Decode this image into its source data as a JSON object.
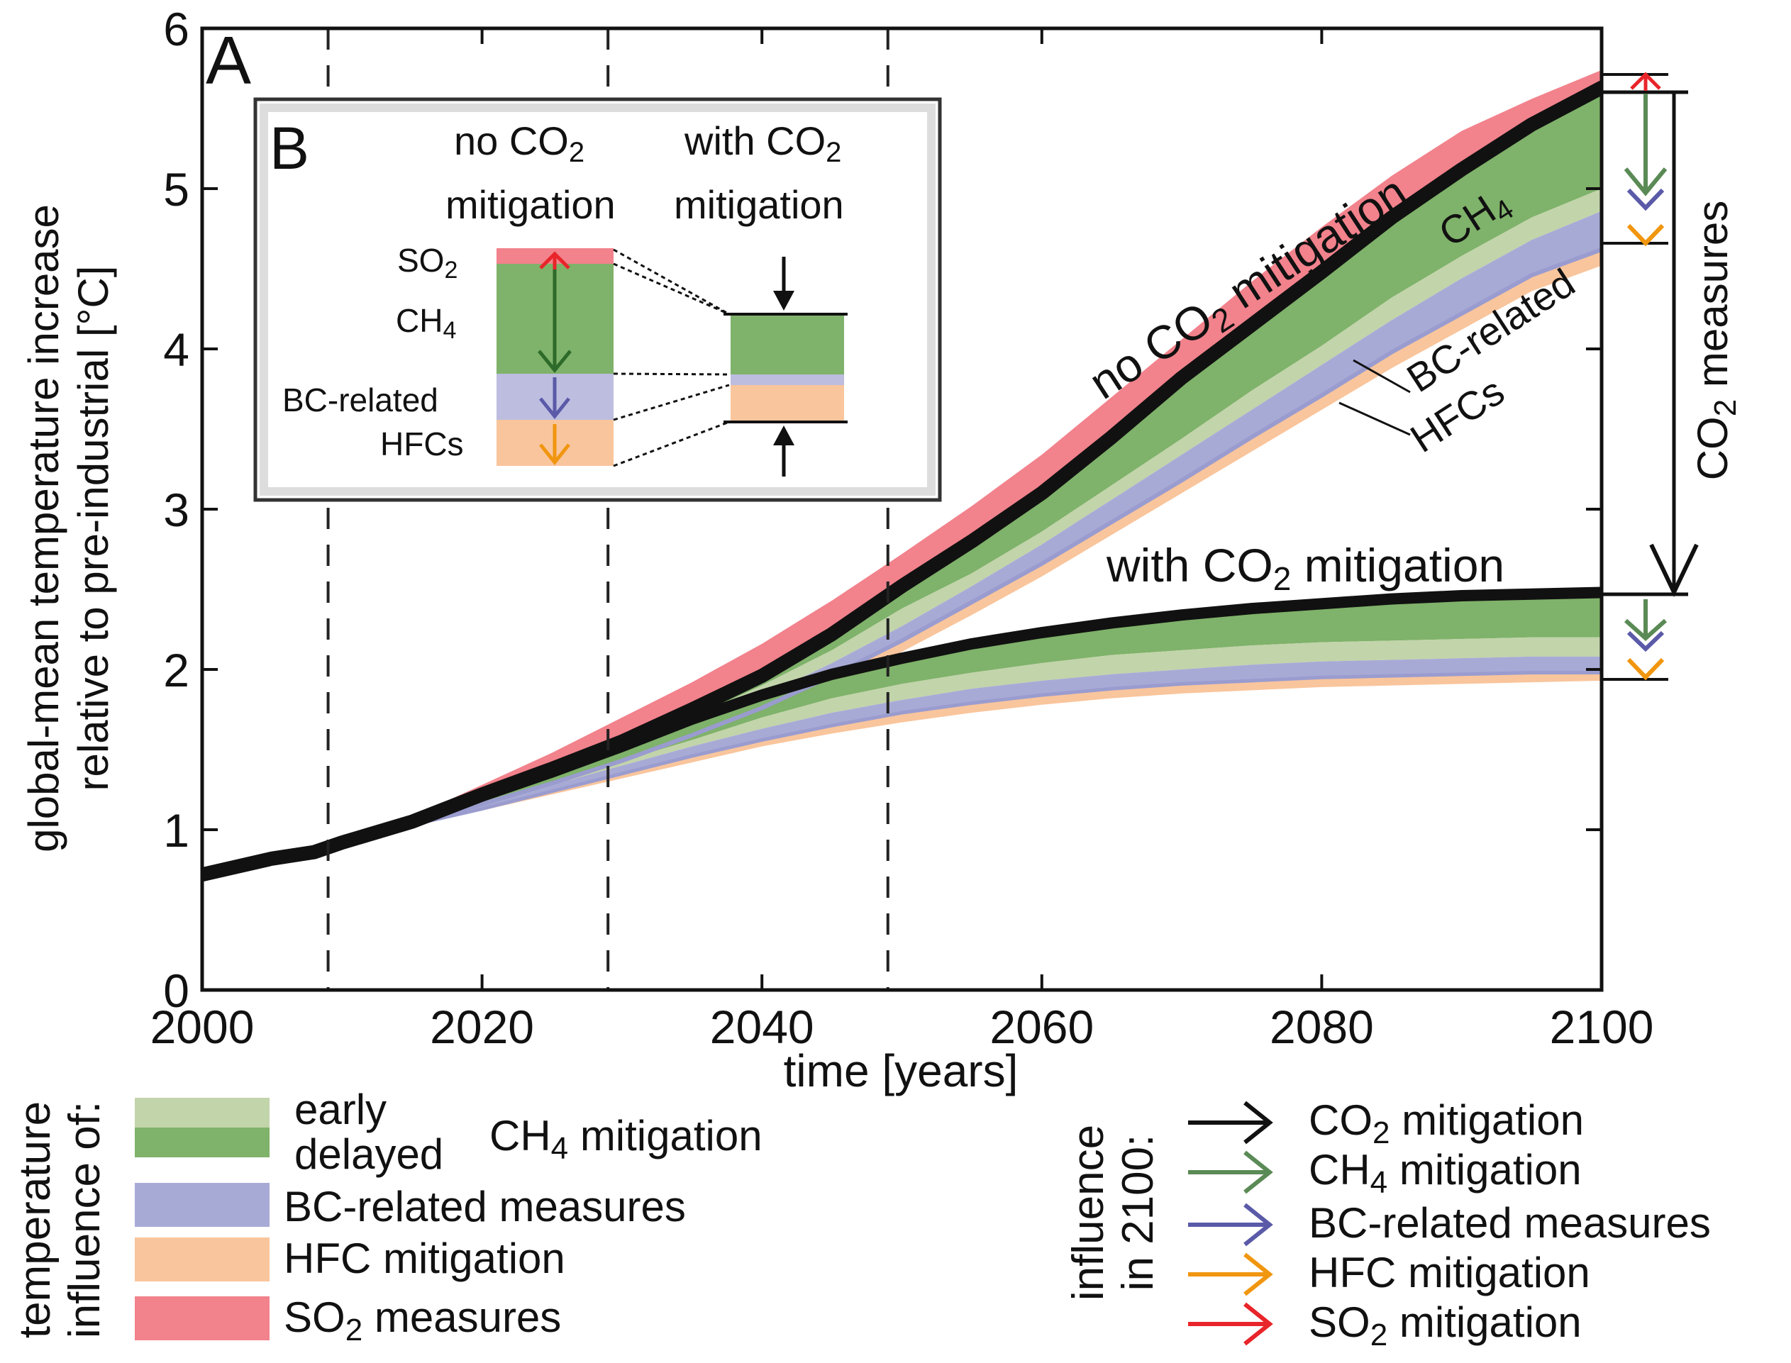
{
  "chart_data": {
    "type": "area",
    "panel_a_label": "A",
    "panel_b_label": "B",
    "xlabel": "time [years]",
    "ylabel_line1": "global-mean temperature increase",
    "ylabel_line2": "relative to pre-industrial [°C]",
    "xlim": [
      2000,
      2100
    ],
    "ylim": [
      0,
      6
    ],
    "x_ticks": [
      2000,
      2020,
      2040,
      2060,
      2080,
      2100
    ],
    "y_ticks": [
      0,
      1,
      2,
      3,
      4,
      5,
      6
    ],
    "dashed_years": [
      2009,
      2029,
      2049
    ],
    "x": [
      2000,
      2005,
      2008,
      2010,
      2015,
      2020,
      2025,
      2030,
      2035,
      2040,
      2045,
      2050,
      2055,
      2060,
      2065,
      2070,
      2075,
      2080,
      2085,
      2090,
      2095,
      2100
    ],
    "series": [
      {
        "name": "no CO2 mitigation",
        "values": [
          0.72,
          0.82,
          0.86,
          0.92,
          1.05,
          1.22,
          1.38,
          1.55,
          1.75,
          1.96,
          2.22,
          2.52,
          2.8,
          3.1,
          3.45,
          3.82,
          4.15,
          4.48,
          4.82,
          5.12,
          5.4,
          5.63
        ]
      },
      {
        "name": "no CO2 mitigation + early CH4",
        "values": [
          0.72,
          0.82,
          0.86,
          0.92,
          1.05,
          1.2,
          1.36,
          1.52,
          1.7,
          1.9,
          2.12,
          2.38,
          2.6,
          2.86,
          3.15,
          3.44,
          3.74,
          4.02,
          4.32,
          4.58,
          4.82,
          5.0
        ]
      },
      {
        "name": "no CO2 mitigation + delayed CH4",
        "values": [
          0.72,
          0.82,
          0.86,
          0.92,
          1.05,
          1.19,
          1.33,
          1.48,
          1.65,
          1.83,
          2.04,
          2.27,
          2.52,
          2.78,
          3.06,
          3.34,
          3.62,
          3.9,
          4.18,
          4.44,
          4.68,
          4.86
        ]
      },
      {
        "name": "no CO2 mitigation + BC-related",
        "values": [
          0.72,
          0.82,
          0.86,
          0.92,
          1.04,
          1.16,
          1.29,
          1.43,
          1.59,
          1.76,
          1.96,
          2.18,
          2.42,
          2.66,
          2.92,
          3.18,
          3.45,
          3.71,
          3.98,
          4.22,
          4.46,
          4.62
        ]
      },
      {
        "name": "no CO2 mitigation + HFC",
        "values": [
          0.72,
          0.82,
          0.86,
          0.92,
          1.04,
          1.15,
          1.27,
          1.4,
          1.55,
          1.71,
          1.9,
          2.11,
          2.34,
          2.58,
          2.84,
          3.1,
          3.36,
          3.62,
          3.88,
          4.12,
          4.36,
          4.52
        ]
      },
      {
        "name": "SO2 measures (upper)",
        "values": [
          0.72,
          0.82,
          0.86,
          0.93,
          1.08,
          1.28,
          1.48,
          1.7,
          1.92,
          2.16,
          2.43,
          2.72,
          3.02,
          3.34,
          3.7,
          4.06,
          4.42,
          4.76,
          5.08,
          5.36,
          5.56,
          5.74
        ]
      },
      {
        "name": "with CO2 mitigation",
        "values": [
          0.72,
          0.82,
          0.86,
          0.92,
          1.05,
          1.21,
          1.36,
          1.52,
          1.69,
          1.84,
          1.97,
          2.07,
          2.16,
          2.23,
          2.29,
          2.34,
          2.38,
          2.41,
          2.44,
          2.46,
          2.47,
          2.48
        ]
      },
      {
        "name": "with CO2 mitigation + early CH4",
        "values": [
          0.72,
          0.82,
          0.86,
          0.92,
          1.04,
          1.17,
          1.3,
          1.43,
          1.56,
          1.7,
          1.82,
          1.91,
          1.98,
          2.04,
          2.09,
          2.12,
          2.15,
          2.17,
          2.18,
          2.19,
          2.2,
          2.2
        ]
      },
      {
        "name": "with CO2 mitigation + delayed CH4",
        "values": [
          0.72,
          0.82,
          0.86,
          0.92,
          1.04,
          1.16,
          1.28,
          1.4,
          1.52,
          1.63,
          1.73,
          1.81,
          1.88,
          1.93,
          1.97,
          2.0,
          2.03,
          2.05,
          2.06,
          2.07,
          2.08,
          2.08
        ]
      },
      {
        "name": "with CO2 mitigation + BC-related",
        "values": [
          0.72,
          0.82,
          0.86,
          0.92,
          1.03,
          1.13,
          1.24,
          1.35,
          1.46,
          1.56,
          1.65,
          1.73,
          1.79,
          1.84,
          1.88,
          1.91,
          1.93,
          1.95,
          1.96,
          1.97,
          1.98,
          1.98
        ]
      },
      {
        "name": "with CO2 mitigation + HFC",
        "values": [
          0.72,
          0.82,
          0.86,
          0.92,
          1.03,
          1.12,
          1.22,
          1.32,
          1.42,
          1.52,
          1.6,
          1.67,
          1.73,
          1.78,
          1.82,
          1.85,
          1.87,
          1.89,
          1.9,
          1.91,
          1.92,
          1.93
        ]
      }
    ],
    "annotations": {
      "no_co2_prefix": "no CO",
      "no_co2_suffix": " mitigation",
      "with_co2_prefix": "with CO",
      "with_co2_suffix": " mitigation",
      "co2_measures_prefix": "CO",
      "co2_measures_suffix": " measures",
      "ch4_base": "CH",
      "bc_related": "BC-related",
      "hfcs": "HFCs",
      "sub2": "2",
      "sub4": "4"
    },
    "inset": {
      "col1_line1_prefix": "no CO",
      "col1_line2": "mitigation",
      "col2_line1_prefix": "with CO",
      "col2_line2": "mitigation",
      "row_so2": "SO",
      "row_ch4": "CH",
      "row_bc": "BC-related",
      "row_hfcs": "HFCs"
    },
    "legend_left": {
      "title_line1": "temperature",
      "title_line2": "influence of:",
      "early": "early",
      "delayed": "delayed",
      "ch4_prefix": "CH",
      "ch4_suffix": " mitigation",
      "bc": "BC-related measures",
      "hfc": "HFC mitigation",
      "so2_prefix": "SO",
      "so2_suffix": " measures"
    },
    "legend_right": {
      "title_line1": "influence",
      "title_line2": "in 2100:",
      "co2_prefix": "CO",
      "co2_suffix": " mitigation",
      "ch4_prefix": "CH",
      "ch4_suffix": " mitigation",
      "bc": "BC-related measures",
      "hfc": "HFC mitigation",
      "so2_prefix": "SO",
      "so2_suffix": " mitigation"
    }
  },
  "colors": {
    "so2": "#f2828c",
    "ch4_delayed": "#7fb26a",
    "ch4_early": "#c2d4aa",
    "bc": "#a8aad6",
    "hfc": "#f9c59c",
    "black": "#111111",
    "arrow_co2": "#111111",
    "arrow_ch4": "#5a8a55",
    "arrow_bc": "#5a5aa8",
    "arrow_hfc": "#f0960f",
    "arrow_so2": "#e8252a"
  }
}
